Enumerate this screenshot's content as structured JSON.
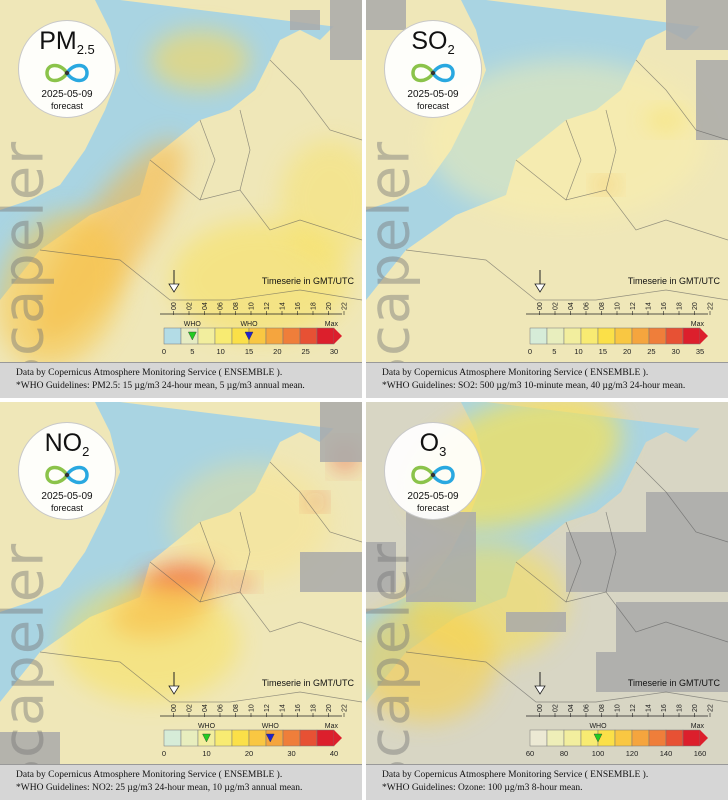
{
  "watermark": "Scapeler",
  "timeserie_label": "Timeserie in GMT/UTC",
  "hours": [
    "00",
    "02",
    "04",
    "06",
    "08",
    "10",
    "12",
    "14",
    "16",
    "18",
    "20",
    "22"
  ],
  "who_label": "WHO",
  "max_label": "Max",
  "colors": {
    "water": "#a9d4e2",
    "land_low": "#ffe98a",
    "nodata": "#a9a9a9",
    "who_marker_24h": "#22cc22",
    "who_marker_annual": "#2222cc",
    "who_marker_ozone": "#cc2222"
  },
  "panels": [
    {
      "pollutant": "PM",
      "pollutant_sub": "2.5",
      "date": "2025-05-09",
      "forecast_label": "forecast",
      "scale_ticks": [
        "0",
        "5",
        "10",
        "15",
        "20",
        "25",
        "30"
      ],
      "scale_colors": [
        "#b3dce6",
        "#e6ecc3",
        "#f2ee9e",
        "#f8eb72",
        "#fbe048",
        "#f9c742",
        "#f5a53e",
        "#ef7e3a",
        "#e75134",
        "#dc1f2c"
      ],
      "who_markers": [
        {
          "label": "WHO",
          "value": 5,
          "color": "#22cc22"
        },
        {
          "label": "WHO",
          "value": 15,
          "color": "#2222cc"
        }
      ],
      "attribution": "Data by Copernicus Atmosphere Monitoring Service ( ENSEMBLE ).",
      "guidelines": "*WHO Guidelines: PM2.5: 15 µg/m3 24-hour mean, 5 µg/m3 annual mean."
    },
    {
      "pollutant": "SO",
      "pollutant_sub": "2",
      "date": "2025-05-09",
      "forecast_label": "forecast",
      "scale_ticks": [
        "0",
        "5",
        "10",
        "15",
        "20",
        "25",
        "30",
        "35"
      ],
      "scale_colors": [
        "#d6ecd8",
        "#e8eebe",
        "#f2ee9e",
        "#f8eb72",
        "#fbe048",
        "#f9c742",
        "#f5a53e",
        "#ef7e3a",
        "#e75134",
        "#dc1f2c"
      ],
      "who_markers": [],
      "attribution": "Data by Copernicus Atmosphere Monitoring Service ( ENSEMBLE ).",
      "guidelines": "*WHO Guidelines: SO2: 500 µg/m3 10-minute mean, 40 µg/m3 24-hour mean."
    },
    {
      "pollutant": "NO",
      "pollutant_sub": "2",
      "date": "2025-05-09",
      "forecast_label": "forecast",
      "scale_ticks": [
        "0",
        "10",
        "20",
        "30",
        "40"
      ],
      "scale_colors": [
        "#d6ecd8",
        "#e8eebe",
        "#f2ee9e",
        "#f8eb72",
        "#fbe048",
        "#f9c742",
        "#f5a53e",
        "#ef7e3a",
        "#e75134",
        "#dc1f2c"
      ],
      "who_markers": [
        {
          "label": "WHO",
          "value": 10,
          "color": "#22cc22"
        },
        {
          "label": "WHO",
          "value": 25,
          "color": "#2222cc"
        }
      ],
      "attribution": "Data by Copernicus Atmosphere Monitoring Service ( ENSEMBLE ).",
      "guidelines": "*WHO Guidelines: NO2: 25 µg/m3 24-hour mean, 10 µg/m3 annual mean."
    },
    {
      "pollutant": "O",
      "pollutant_sub": "3",
      "date": "2025-05-09",
      "forecast_label": "forecast",
      "scale_ticks": [
        "60",
        "80",
        "100",
        "120",
        "140",
        "160"
      ],
      "scale_colors": [
        "#ece9d4",
        "#eeeeb8",
        "#f2ee9e",
        "#f8eb72",
        "#fbe048",
        "#f9c742",
        "#f5a53e",
        "#ef7e3a",
        "#e75134",
        "#dc1f2c"
      ],
      "who_markers": [
        {
          "label": "WHO",
          "value": 100,
          "color": "#22cc22"
        }
      ],
      "attribution": "Data by Copernicus Atmosphere Monitoring Service ( ENSEMBLE ).",
      "guidelines": "*WHO Guidelines: Ozone: 100 µg/m3 8-hour mean."
    }
  ]
}
